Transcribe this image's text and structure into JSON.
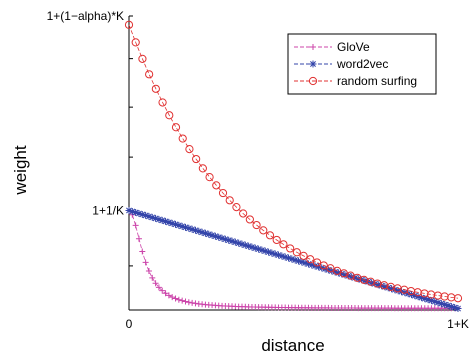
{
  "chart_data": {
    "type": "line",
    "title": "",
    "xlabel": "distance",
    "ylabel": "weight",
    "xlim": [
      0,
      1
    ],
    "ylim": [
      0,
      1.0
    ],
    "x_ticks": [
      {
        "value": 0,
        "label": "0"
      },
      {
        "value": 1,
        "label": "1+K"
      }
    ],
    "y_ticks": [
      {
        "value": 0.3385,
        "label": "1+1/K"
      },
      {
        "value": 1.0,
        "label": "1+(1−alpha)*K"
      }
    ],
    "legend": {
      "position": "top-right"
    },
    "grid": false,
    "series": [
      {
        "name": "GloVe",
        "color": "#cc44aa",
        "line_style": "dashed",
        "marker": "plus",
        "n_points": 100,
        "y_at_0": 0.3385,
        "y_at_end": 0.005,
        "description": "rapid decay (1/d) toward baseline"
      },
      {
        "name": "word2vec",
        "color": "#3344aa",
        "line_style": "dashed",
        "marker": "star",
        "n_points": 100,
        "y_at_0": 0.3385,
        "y_at_end": 0.005,
        "description": "linear decrease"
      },
      {
        "name": "random surfing",
        "color": "#e03030",
        "line_style": "dashed",
        "marker": "circle",
        "n_points": 50,
        "y_at_0": 0.97,
        "y_at_end": 0.04,
        "description": "exponential decay"
      }
    ]
  }
}
